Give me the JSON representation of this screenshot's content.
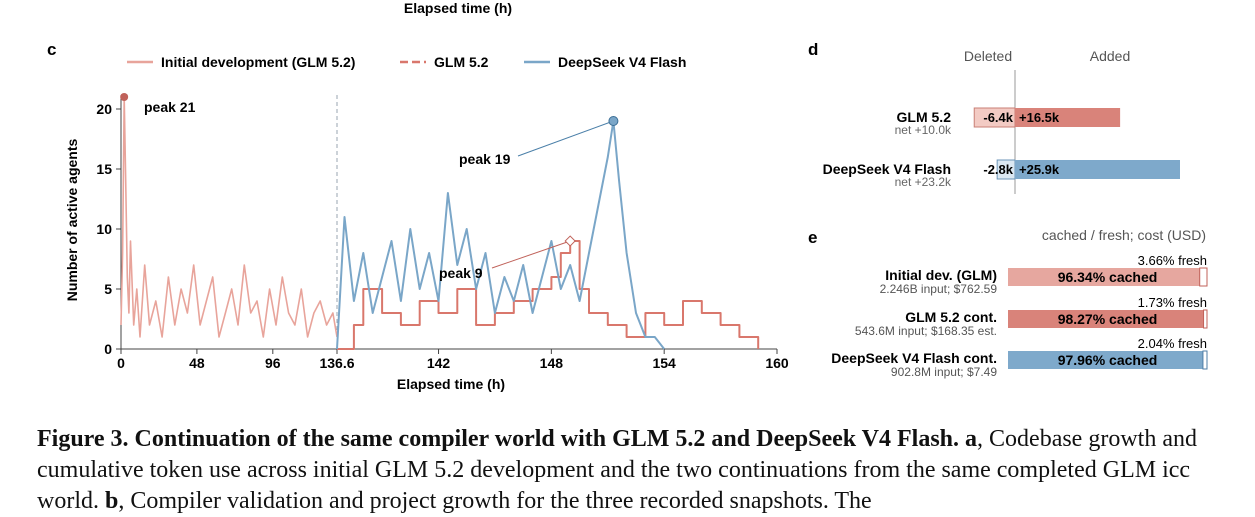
{
  "top_label": "Elapsed time (h)",
  "panel_c": {
    "letter": "c",
    "chart_data": {
      "type": "line",
      "xlabel": "Elapsed time (h)",
      "ylabel": "Number of active agents",
      "x_ticks": [
        "0",
        "48",
        "96",
        "136.6",
        "142",
        "148",
        "154",
        "160"
      ],
      "y_ticks": [
        "0",
        "5",
        "10",
        "15",
        "20"
      ],
      "ylim": [
        0,
        22
      ],
      "x_axis_note": "broken axis: 0–136.6 h compressed, 136.6–160 h expanded",
      "grid": false,
      "legend_position": "top",
      "series": [
        {
          "name": "Initial development (GLM 5.2)",
          "color": "#e8a49b",
          "style": "solid",
          "x": [
            0,
            1,
            2,
            3,
            4,
            5,
            6,
            8,
            10,
            12,
            15,
            18,
            22,
            26,
            30,
            34,
            38,
            42,
            46,
            50,
            54,
            58,
            62,
            66,
            70,
            74,
            78,
            82,
            86,
            90,
            94,
            98,
            102,
            106,
            110,
            114,
            118,
            122,
            126,
            130,
            134,
            136.6
          ],
          "y": [
            2,
            8,
            21,
            14,
            6,
            3,
            9,
            2,
            5,
            1,
            7,
            2,
            4,
            1,
            6,
            2,
            5,
            3,
            7,
            2,
            4,
            6,
            1,
            3,
            5,
            2,
            7,
            3,
            4,
            1,
            5,
            2,
            6,
            3,
            2,
            5,
            1,
            3,
            4,
            2,
            3,
            1
          ]
        },
        {
          "name": "GLM 5.2",
          "color": "#d9776c",
          "style": "dashed legend, stepped line",
          "x": [
            136.6,
            137.5,
            138,
            139,
            140,
            141,
            142,
            143,
            144,
            145,
            146,
            147,
            148,
            148.5,
            149,
            149.5,
            150,
            151,
            152,
            153,
            154,
            155,
            156,
            157,
            158,
            159
          ],
          "y": [
            0,
            2,
            5,
            3,
            2,
            4,
            3,
            5,
            2,
            3,
            4,
            5,
            6,
            8,
            9,
            5,
            3,
            2,
            1,
            3,
            2,
            4,
            3,
            2,
            1,
            0
          ]
        },
        {
          "name": "DeepSeek V4 Flash",
          "color": "#7aa6c8",
          "style": "solid",
          "x": [
            136.6,
            137,
            137.5,
            138,
            138.5,
            139,
            139.5,
            140,
            140.5,
            141,
            141.5,
            142,
            142.5,
            143,
            143.5,
            144,
            144.5,
            145,
            145.5,
            146,
            146.5,
            147,
            147.5,
            148,
            148.5,
            149,
            149.5,
            150,
            150.5,
            151,
            151.3,
            151.6,
            152,
            152.5,
            153,
            153.5,
            154
          ],
          "y": [
            0,
            11,
            4,
            8,
            3,
            6,
            9,
            4,
            10,
            5,
            8,
            4,
            13,
            7,
            10,
            5,
            8,
            3,
            6,
            4,
            7,
            3,
            6,
            9,
            5,
            7,
            4,
            8,
            12,
            16,
            19,
            14,
            8,
            3,
            1,
            1,
            0
          ]
        }
      ],
      "annotations": [
        {
          "text": "peak 21",
          "x": 2,
          "y": 21,
          "series": "Initial development (GLM 5.2)"
        },
        {
          "text": "peak 19",
          "x": 151.3,
          "y": 19,
          "series": "DeepSeek V4 Flash"
        },
        {
          "text": "peak 9",
          "x": 149,
          "y": 9,
          "series": "GLM 5.2"
        }
      ]
    }
  },
  "panel_d": {
    "letter": "d",
    "chart_data": {
      "type": "bar",
      "orientation": "horizontal diverging",
      "header_left": "Deleted",
      "header_right": "Added",
      "categories": [
        "GLM 5.2",
        "DeepSeek V4 Flash"
      ],
      "net_labels": [
        "net +10.0k",
        "net +23.2k"
      ],
      "series": [
        {
          "name": "Deleted",
          "values": [
            -6.4,
            -2.8
          ],
          "labels": [
            "-6.4k",
            "-2.8k"
          ],
          "colors": [
            "#f3cbc4",
            "#dbe8f2"
          ]
        },
        {
          "name": "Added",
          "values": [
            16.5,
            25.9
          ],
          "labels": [
            "+16.5k",
            "+25.9k"
          ],
          "colors": [
            "#d9837a",
            "#7ea9cb"
          ]
        }
      ],
      "units": "thousand lines"
    }
  },
  "panel_e": {
    "letter": "e",
    "chart_data": {
      "type": "bar",
      "orientation": "horizontal stacked 100%",
      "header": "cached / fresh; cost (USD)",
      "rows": [
        {
          "name": "Initial dev. (GLM)",
          "sub": "2.246B input; $762.59",
          "cached_pct": 96.34,
          "fresh_pct": 3.66,
          "cached_label": "96.34% cached",
          "fresh_label": "3.66% fresh",
          "color": "#e6a79f"
        },
        {
          "name": "GLM 5.2 cont.",
          "sub": "543.6M input; $168.35 est.",
          "cached_pct": 98.27,
          "fresh_pct": 1.73,
          "cached_label": "98.27% cached",
          "fresh_label": "1.73% fresh",
          "color": "#d9837a"
        },
        {
          "name": "DeepSeek V4 Flash cont.",
          "sub": "902.8M input; $7.49",
          "cached_pct": 97.96,
          "fresh_pct": 2.04,
          "cached_label": "97.96% cached",
          "fresh_label": "2.04% fresh",
          "color": "#7ea9cb"
        }
      ]
    }
  },
  "caption": {
    "figure_title": "Figure 3.  Continuation of the same compiler world with GLM 5.2 and DeepSeek V4 Flash.",
    "part_a_letter": "a",
    "part_a_text": ", Codebase growth and cumulative token use across initial GLM 5.2 development and the two continuations from the same completed GLM icc world.",
    "part_b_letter": "b",
    "part_b_text": ", Compiler validation and project growth for the three recorded snapshots. The"
  }
}
